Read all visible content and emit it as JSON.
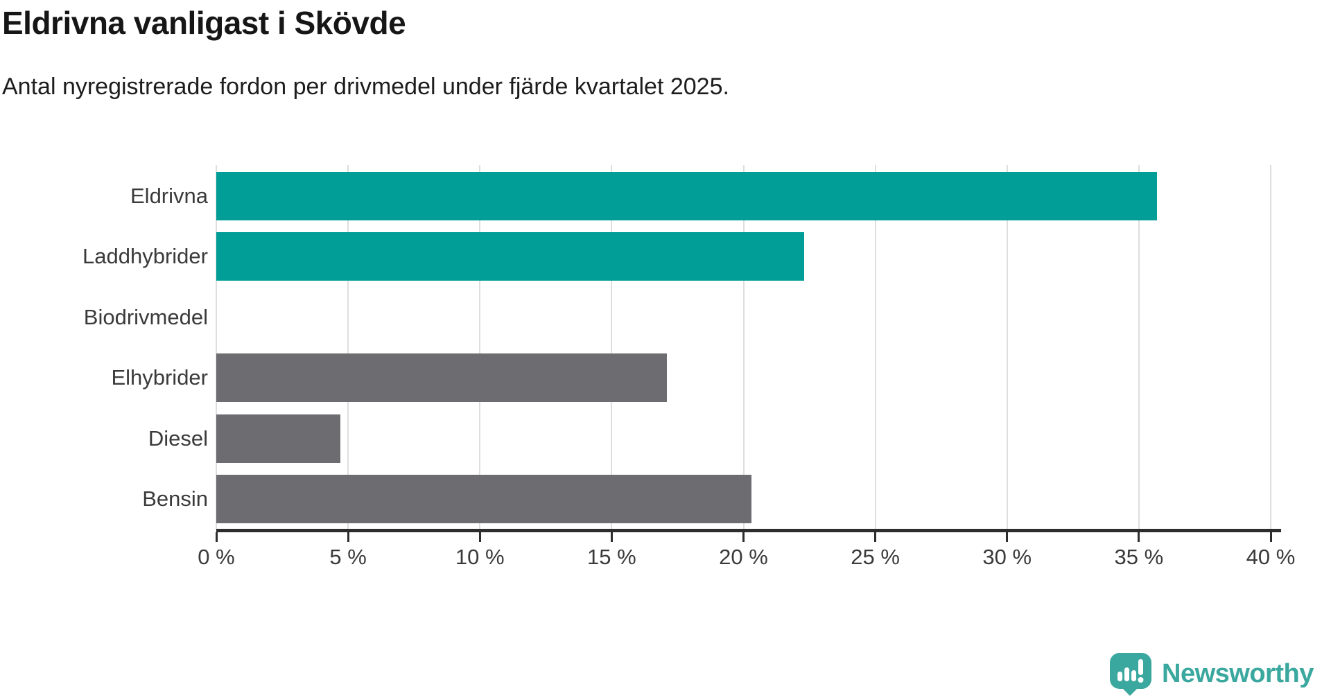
{
  "header": {
    "title": "Eldrivna vanligast i Skövde",
    "subtitle": "Antal nyregistrerade fordon per drivmedel under fjärde kvartalet 2025."
  },
  "chart_data": {
    "type": "bar",
    "orientation": "horizontal",
    "title": "Eldrivna vanligast i Skövde",
    "subtitle": "Antal nyregistrerade fordon per drivmedel under fjärde kvartalet 2025.",
    "categories": [
      "Eldrivna",
      "Laddhybrider",
      "Biodrivmedel",
      "Elhybrider",
      "Diesel",
      "Bensin"
    ],
    "values": [
      35.7,
      22.3,
      0,
      17.1,
      4.7,
      20.3
    ],
    "unit": "%",
    "xlim": [
      0,
      40
    ],
    "x_tick_step": 5,
    "x_tick_labels": [
      "0 %",
      "5 %",
      "10 %",
      "15 %",
      "20 %",
      "25 %",
      "30 %",
      "35 %",
      "40 %"
    ],
    "grid": true,
    "legend": false,
    "bar_colors": [
      "#009e96",
      "#009e96",
      "#6c6c71",
      "#6c6c71",
      "#6c6c71",
      "#6c6c71"
    ]
  },
  "branding": {
    "logo_text": "Newsworthy",
    "logo_color": "#3aa89e",
    "logo_icon": "bar-chart-speech-bubble-icon"
  },
  "colors": {
    "highlight_teal": "#009e96",
    "bar_gray": "#6c6c71",
    "gridline": "#dedede",
    "axis": "#2d2d2d",
    "title_text": "#161616",
    "label_text": "#3a3a3a"
  }
}
